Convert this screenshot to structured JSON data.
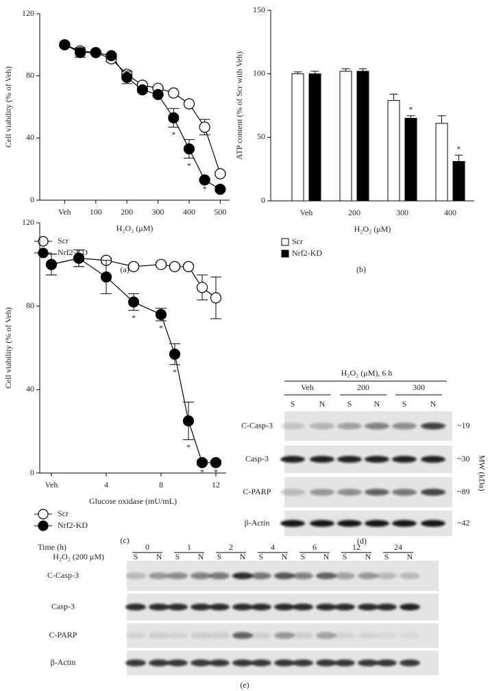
{
  "chart_data": [
    {
      "type": "line",
      "caption": "(a)",
      "xlabel": "H₂O₂ (μM)",
      "ylabel": "Cell viability (% of Veh)",
      "x": [
        0,
        50,
        100,
        150,
        200,
        250,
        300,
        350,
        400,
        450,
        500
      ],
      "xlim": [
        -80,
        530
      ],
      "xticks": [
        {
          "value": 0,
          "label": "Veh"
        },
        100,
        200,
        300,
        400,
        500
      ],
      "ylim": [
        0,
        120
      ],
      "yticks": [
        0,
        40,
        80,
        120
      ],
      "series": [
        {
          "name": "Scr",
          "color": "#ffffff",
          "values": [
            100,
            96,
            95,
            91,
            81,
            74,
            72,
            69,
            62,
            47,
            17
          ],
          "errors": [
            1,
            2,
            1,
            2,
            2,
            1,
            1,
            1,
            1,
            5,
            1
          ]
        },
        {
          "name": "Nrf2-KD",
          "color": "#000000",
          "values": [
            100,
            95,
            95,
            93,
            79,
            71,
            68,
            53,
            33,
            13,
            7
          ],
          "errors": [
            1,
            3,
            1,
            1,
            4,
            1,
            1,
            6,
            6,
            1,
            1
          ],
          "annotations": [
            {
              "x": 350,
              "text": "*"
            },
            {
              "x": 400,
              "text": "*"
            },
            {
              "x": 450,
              "text": "*"
            }
          ]
        }
      ]
    },
    {
      "type": "bar",
      "caption": "(b)",
      "xlabel": "H₂O₂ (μM)",
      "ylabel": "ATP content (% of Scr with Veh)",
      "categories": [
        "Veh",
        "200",
        "300",
        "400"
      ],
      "ylim": [
        0,
        150
      ],
      "yticks": [
        0,
        50,
        100,
        150
      ],
      "series": [
        {
          "name": "Scr",
          "color": "#ffffff",
          "values": [
            100,
            102,
            79,
            61
          ],
          "errors": [
            1.5,
            2,
            5,
            6
          ]
        },
        {
          "name": "Nrf2-KD",
          "color": "#000000",
          "values": [
            100,
            102,
            65,
            31
          ],
          "errors": [
            2,
            2,
            2,
            5
          ],
          "annotations": [
            {
              "category": "300",
              "text": "*"
            },
            {
              "category": "400",
              "text": "*"
            }
          ]
        }
      ]
    },
    {
      "type": "line",
      "caption": "(c)",
      "xlabel": "Glucose oxidase (mU/mL)",
      "ylabel": "Cell viability (% of Veh)",
      "x": [
        0,
        2,
        4,
        6,
        8,
        9,
        10,
        11,
        12
      ],
      "xlim": [
        -0.85,
        12.75
      ],
      "xticks": [
        {
          "value": 0,
          "label": "Veh"
        },
        4,
        8,
        12
      ],
      "ylim": [
        0,
        120
      ],
      "yticks": [
        0,
        40,
        80,
        120
      ],
      "series": [
        {
          "name": "Scr",
          "color": "#ffffff",
          "values": [
            100,
            103,
            102,
            99,
            100,
            99,
            99,
            89,
            84
          ],
          "errors": [
            5,
            4,
            1,
            1,
            1,
            1,
            1,
            6,
            10
          ]
        },
        {
          "name": "Nrf2-KD",
          "color": "#000000",
          "values": [
            100,
            103,
            94,
            82,
            76,
            57,
            25,
            5,
            5
          ],
          "errors": [
            5,
            4,
            8,
            4,
            3,
            5,
            9,
            1,
            1
          ],
          "annotations": [
            {
              "x": 6,
              "text": "*"
            },
            {
              "x": 8,
              "text": "*"
            },
            {
              "x": 9,
              "text": "*"
            },
            {
              "x": 10,
              "text": "*"
            },
            {
              "x": 11,
              "text": "*"
            },
            {
              "x": 12,
              "text": "*"
            }
          ]
        }
      ]
    }
  ],
  "blots": [
    {
      "caption": "(d)",
      "treatment": "H₂O₂ (μM), 6 h",
      "groups": [
        "Veh",
        "200",
        "300"
      ],
      "lanes": [
        "S",
        "N",
        "S",
        "N",
        "S",
        "N"
      ],
      "mw_label": "MW (kDa)",
      "rows": [
        {
          "label": "C-Casp-3",
          "mw": "~19"
        },
        {
          "label": "Casp-3",
          "mw": "~30"
        },
        {
          "label": "C-PARP",
          "mw": "~89"
        },
        {
          "label": "β-Actin",
          "mw": "~42"
        }
      ]
    },
    {
      "caption": "(e)",
      "group_title": "Time (h)",
      "lane_title": "H₂O₂ (200 μM)",
      "groups": [
        "0",
        "1",
        "2",
        "4",
        "6",
        "12",
        "24"
      ],
      "lanes": [
        "S",
        "N",
        "S",
        "N",
        "S",
        "N",
        "S",
        "N",
        "S",
        "N",
        "S",
        "N",
        "S",
        "N"
      ],
      "rows": [
        {
          "label": "C-Casp-3"
        },
        {
          "label": "Casp-3"
        },
        {
          "label": "C-PARP"
        },
        {
          "label": "β-Actin"
        }
      ]
    }
  ]
}
